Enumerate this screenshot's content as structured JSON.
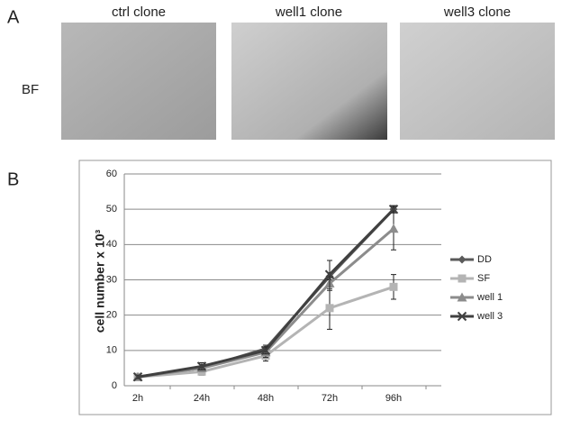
{
  "panels": {
    "a": {
      "label": "A",
      "row_label": "BF",
      "images": [
        {
          "title": "ctrl clone"
        },
        {
          "title": "well1 clone"
        },
        {
          "title": "well3 clone"
        }
      ]
    },
    "b": {
      "label": "B"
    }
  },
  "chart_data": {
    "type": "line",
    "ylabel": "cell number x 10³",
    "categories": [
      "2h",
      "24h",
      "48h",
      "72h",
      "96h"
    ],
    "ylim": [
      0,
      60
    ],
    "yticks": [
      0,
      10,
      20,
      30,
      40,
      50,
      60
    ],
    "grid": true,
    "legend": "right",
    "series": [
      {
        "name": "DD",
        "color": "#5a5a5a",
        "marker": "diamond",
        "values": [
          2.5,
          5,
          10.5,
          31,
          50
        ],
        "errors": [
          0.5,
          1,
          1,
          1,
          1
        ]
      },
      {
        "name": "SF",
        "color": "#b4b4b4",
        "marker": "square",
        "values": [
          2.5,
          4,
          8.5,
          22,
          28
        ],
        "errors": [
          0.5,
          1,
          1.5,
          6,
          3.5
        ]
      },
      {
        "name": "well 1",
        "color": "#8c8c8c",
        "marker": "triangle",
        "values": [
          2.5,
          5,
          9.5,
          29,
          44.5
        ],
        "errors": [
          0.5,
          1,
          1.5,
          2,
          6
        ]
      },
      {
        "name": "well 3",
        "color": "#404040",
        "marker": "x",
        "values": [
          2.5,
          5.5,
          10,
          31.5,
          50
        ],
        "errors": [
          0.5,
          1,
          1,
          4,
          1
        ]
      }
    ]
  }
}
